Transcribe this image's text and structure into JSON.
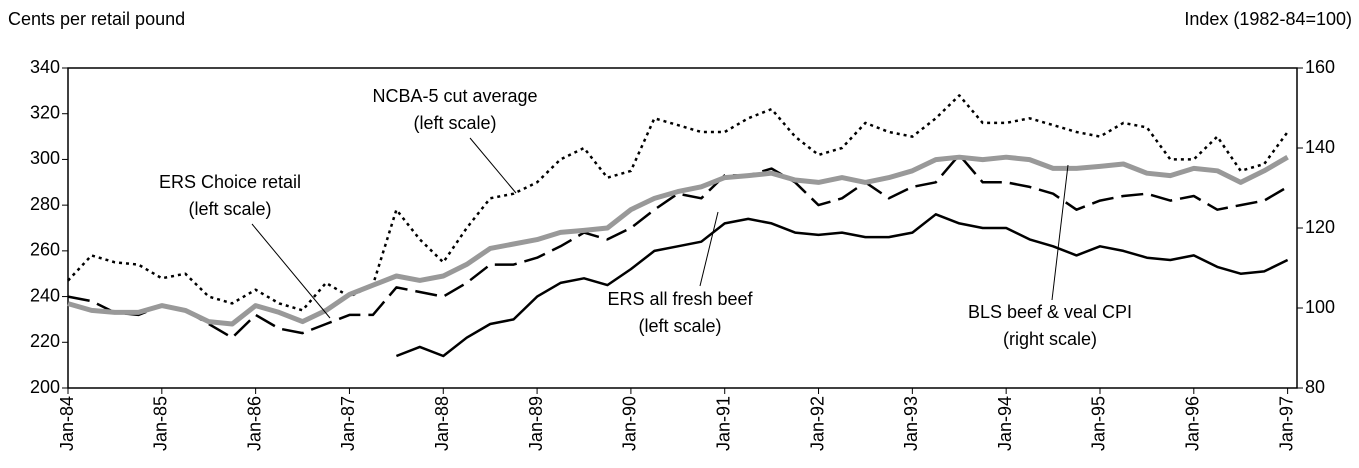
{
  "chart_data": {
    "type": "line",
    "ylabel": "Cents per retail pound",
    "y2label": "Index (1982-84=100)",
    "x": [
      1984,
      1984.25,
      1984.5,
      1984.75,
      1985,
      1985.25,
      1985.5,
      1985.75,
      1986,
      1986.25,
      1986.5,
      1986.75,
      1987,
      1987.25,
      1987.5,
      1987.75,
      1988,
      1988.25,
      1988.5,
      1988.75,
      1989,
      1989.25,
      1989.5,
      1989.75,
      1990,
      1990.25,
      1990.5,
      1990.75,
      1991,
      1991.25,
      1991.5,
      1991.75,
      1992,
      1992.25,
      1992.5,
      1992.75,
      1993,
      1993.25,
      1993.5,
      1993.75,
      1994,
      1994.25,
      1994.5,
      1994.75,
      1995,
      1995.25,
      1995.5,
      1995.75,
      1996,
      1996.25,
      1996.5,
      1996.75,
      1997
    ],
    "xlim": [
      1984,
      1997.1
    ],
    "xticks": [
      {
        "value": 1984,
        "label": "Jan-84"
      },
      {
        "value": 1985,
        "label": "Jan-85"
      },
      {
        "value": 1986,
        "label": "Jan-86"
      },
      {
        "value": 1987,
        "label": "Jan-87"
      },
      {
        "value": 1988,
        "label": "Jan-88"
      },
      {
        "value": 1989,
        "label": "Jan-89"
      },
      {
        "value": 1990,
        "label": "Jan-90"
      },
      {
        "value": 1991,
        "label": "Jan-91"
      },
      {
        "value": 1992,
        "label": "Jan-92"
      },
      {
        "value": 1993,
        "label": "Jan-93"
      },
      {
        "value": 1994,
        "label": "Jan-94"
      },
      {
        "value": 1995,
        "label": "Jan-95"
      },
      {
        "value": 1996,
        "label": "Jan-96"
      },
      {
        "value": 1997,
        "label": "Jan-97"
      }
    ],
    "ylim": [
      200,
      340
    ],
    "yticks": [
      200,
      220,
      240,
      260,
      280,
      300,
      320,
      340
    ],
    "y2lim": [
      80,
      160
    ],
    "y2ticks": [
      80,
      100,
      120,
      140,
      160
    ],
    "series": [
      {
        "name": "NCBA-5 cut average",
        "scale_note": "(left scale)",
        "color": "#000000",
        "dash": "3,4",
        "width": 2.5,
        "values": [
          247,
          258,
          255,
          254,
          248,
          250,
          240,
          237,
          243,
          237,
          234,
          246,
          240,
          245,
          278,
          265,
          255,
          270,
          283,
          285,
          290,
          300,
          305,
          292,
          295,
          318,
          315,
          312,
          312,
          318,
          322,
          310,
          302,
          305,
          316,
          312,
          310,
          318,
          328,
          316,
          316,
          318,
          315,
          312,
          310,
          316,
          314,
          300,
          300,
          310,
          295,
          298,
          312
        ]
      },
      {
        "name": "ERS Choice retail",
        "scale_note": "(left scale)",
        "color": "#000000",
        "dash": "22,8",
        "width": 2.5,
        "values": [
          240,
          238,
          233,
          232,
          236,
          234,
          228,
          222,
          232,
          226,
          224,
          228,
          232,
          232,
          244,
          242,
          240,
          246,
          254,
          254,
          257,
          262,
          268,
          265,
          270,
          278,
          285,
          283,
          293,
          293,
          296,
          290,
          280,
          283,
          290,
          283,
          288,
          290,
          302,
          290,
          290,
          288,
          285,
          278,
          282,
          284,
          285,
          282,
          284,
          278,
          280,
          282,
          288
        ]
      },
      {
        "name": "ERS all fresh beef",
        "scale_note": "(left scale)",
        "color": "#000000",
        "dash": "none",
        "width": 2.5,
        "values": [
          null,
          null,
          null,
          null,
          null,
          null,
          null,
          null,
          null,
          null,
          null,
          null,
          null,
          null,
          214,
          218,
          214,
          222,
          228,
          230,
          240,
          246,
          248,
          245,
          252,
          260,
          262,
          264,
          272,
          274,
          272,
          268,
          267,
          268,
          266,
          266,
          268,
          276,
          272,
          270,
          270,
          265,
          262,
          258,
          262,
          260,
          257,
          256,
          258,
          253,
          250,
          251,
          256
        ]
      },
      {
        "name": "BLS beef & veal CPI",
        "scale_note": "(right scale)",
        "color": "#999999",
        "dash": "none",
        "width": 5,
        "axis": "y2",
        "values": [
          101.1,
          99.4,
          98.9,
          98.9,
          100.6,
          99.4,
          96.6,
          96.0,
          100.6,
          98.9,
          96.6,
          99.4,
          103.4,
          105.7,
          108.0,
          106.9,
          108.0,
          110.9,
          114.9,
          116.0,
          117.1,
          118.9,
          119.4,
          120.0,
          124.6,
          127.4,
          129.1,
          130.3,
          132.6,
          133.1,
          133.7,
          132.0,
          131.4,
          132.6,
          131.4,
          132.6,
          134.3,
          137.1,
          137.7,
          137.1,
          137.7,
          137.1,
          134.9,
          134.9,
          135.4,
          136.0,
          133.7,
          133.1,
          134.9,
          134.3,
          131.4,
          134.3,
          137.7
        ]
      }
    ]
  }
}
